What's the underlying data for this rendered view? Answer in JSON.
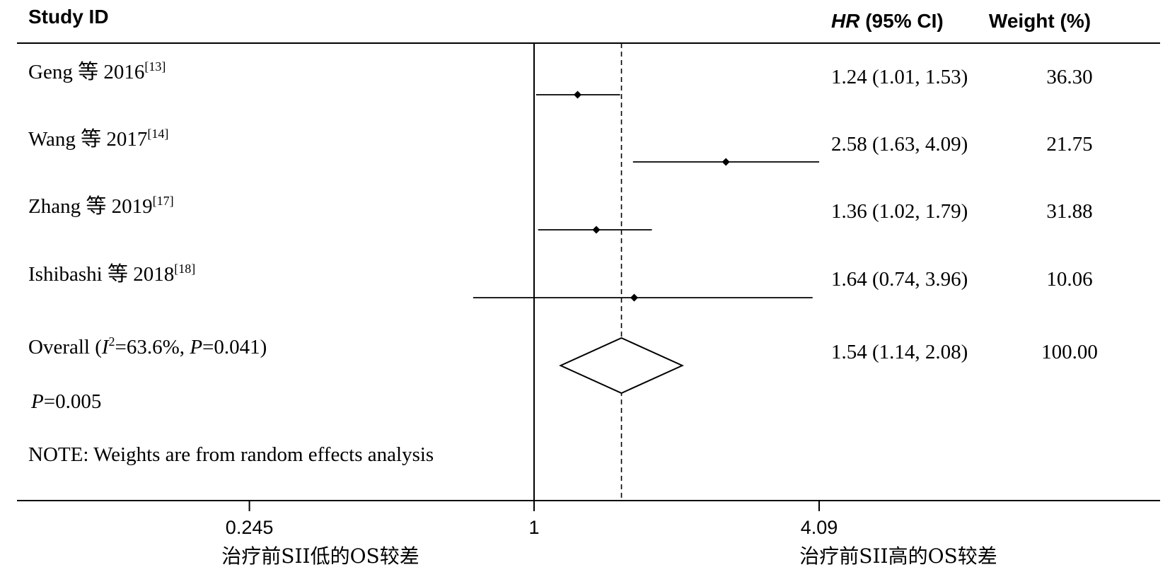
{
  "headers": {
    "study_id": "Study ID",
    "hr_italic": "HR",
    "hr_rest": " (95% CI)",
    "weight": "Weight (%)"
  },
  "overall_row": {
    "label_prefix": "Overall  (",
    "i2_symbol": "I",
    "i2_sup": "2",
    "i2_text": "=63.6%, ",
    "p_symbol": "P",
    "p_text": "=0.041)"
  },
  "p_line": {
    "symbol": "P",
    "text": "=0.005"
  },
  "note": "NOTE: Weights are from random effects analysis",
  "axis": {
    "x_label_left": "治疗前SII低的OS较差",
    "x_label_right": "治疗前SII高的OS较差"
  },
  "chart_data": {
    "type": "forest",
    "scale": "log",
    "x_ticks": [
      {
        "value": 0.245,
        "label": "0.245"
      },
      {
        "value": 1,
        "label": "1"
      },
      {
        "value": 4.09,
        "label": "4.09"
      }
    ],
    "null_line": 1,
    "studies": [
      {
        "label": "Geng 等 2016",
        "ref": "[13]",
        "hr": 1.24,
        "lower": 1.01,
        "upper": 1.53,
        "hr_ci_text": "1.24 (1.01, 1.53)",
        "weight": "36.30"
      },
      {
        "label": "Wang 等 2017",
        "ref": "[14]",
        "hr": 2.58,
        "lower": 1.63,
        "upper": 4.09,
        "hr_ci_text": "2.58 (1.63, 4.09)",
        "weight": "21.75"
      },
      {
        "label": "Zhang 等 2019",
        "ref": "[17]",
        "hr": 1.36,
        "lower": 1.02,
        "upper": 1.79,
        "hr_ci_text": "1.36 (1.02, 1.79)",
        "weight": "31.88"
      },
      {
        "label": "Ishibashi 等 2018",
        "ref": "[18]",
        "hr": 1.64,
        "lower": 0.74,
        "upper": 3.96,
        "hr_ci_text": "1.64 (0.74, 3.96)",
        "weight": "10.06"
      }
    ],
    "overall": {
      "hr": 1.54,
      "lower": 1.14,
      "upper": 2.08,
      "hr_ci_text": "1.54 (1.14, 2.08)",
      "weight": "100.00"
    }
  }
}
